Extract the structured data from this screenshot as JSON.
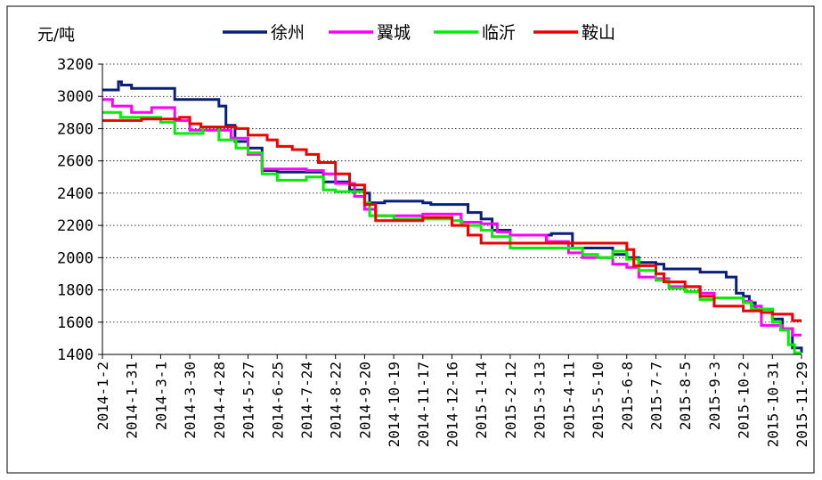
{
  "chart_data": {
    "type": "line",
    "ylabel": "元/吨",
    "ylim": [
      1400,
      3200
    ],
    "yticks": [
      "1400",
      "1600",
      "1800",
      "2000",
      "2200",
      "2400",
      "2600",
      "2800",
      "3000",
      "3200"
    ],
    "ytick_values": [
      1400,
      1600,
      1800,
      2000,
      2200,
      2400,
      2600,
      2800,
      3000,
      3200
    ],
    "grid": "horizontal dotted",
    "legend_position": "top",
    "x_tick_labels": [
      "2014-1-2",
      "2014-1-31",
      "2014-3-1",
      "2014-3-30",
      "2014-4-28",
      "2014-5-27",
      "2014-6-25",
      "2014-7-24",
      "2014-8-22",
      "2014-9-20",
      "2014-10-19",
      "2014-11-17",
      "2014-12-16",
      "2015-1-14",
      "2015-2-12",
      "2015-3-13",
      "2015-4-11",
      "2015-5-10",
      "2015-6-8",
      "2015-7-7",
      "2015-8-5",
      "2015-9-3",
      "2015-10-2",
      "2015-10-31",
      "2015-11-29"
    ],
    "x_domain": [
      "2014-1-2",
      "2015-11-29"
    ],
    "series": [
      {
        "name": "徐州",
        "color": "#0a1f7a",
        "points": [
          [
            "2014-1-2",
            3040
          ],
          [
            "2014-1-16",
            3040
          ],
          [
            "2014-1-18",
            3090
          ],
          [
            "2014-1-21",
            3070
          ],
          [
            "2014-1-31",
            3050
          ],
          [
            "2014-3-1",
            3050
          ],
          [
            "2014-3-15",
            2980
          ],
          [
            "2014-4-28",
            2940
          ],
          [
            "2014-5-5",
            2820
          ],
          [
            "2014-5-14",
            2720
          ],
          [
            "2014-5-27",
            2680
          ],
          [
            "2014-6-10",
            2540
          ],
          [
            "2014-6-25",
            2530
          ],
          [
            "2014-7-24",
            2530
          ],
          [
            "2014-8-10",
            2470
          ],
          [
            "2014-9-5",
            2420
          ],
          [
            "2014-9-20",
            2400
          ],
          [
            "2014-9-25",
            2340
          ],
          [
            "2014-10-10",
            2350
          ],
          [
            "2014-11-17",
            2340
          ],
          [
            "2014-11-25",
            2330
          ],
          [
            "2014-12-16",
            2330
          ],
          [
            "2015-1-1",
            2280
          ],
          [
            "2015-1-14",
            2240
          ],
          [
            "2015-1-25",
            2170
          ],
          [
            "2015-2-12",
            2140
          ],
          [
            "2015-3-13",
            2140
          ],
          [
            "2015-3-25",
            2150
          ],
          [
            "2015-4-11",
            2150
          ],
          [
            "2015-4-15",
            2060
          ],
          [
            "2015-5-10",
            2060
          ],
          [
            "2015-5-25",
            2020
          ],
          [
            "2015-6-8",
            2000
          ],
          [
            "2015-6-20",
            1970
          ],
          [
            "2015-7-7",
            1960
          ],
          [
            "2015-7-15",
            1930
          ],
          [
            "2015-8-5",
            1930
          ],
          [
            "2015-8-20",
            1910
          ],
          [
            "2015-9-3",
            1910
          ],
          [
            "2015-9-15",
            1880
          ],
          [
            "2015-9-25",
            1780
          ],
          [
            "2015-10-2",
            1760
          ],
          [
            "2015-10-8",
            1720
          ],
          [
            "2015-10-14",
            1680
          ],
          [
            "2015-10-31",
            1620
          ],
          [
            "2015-11-10",
            1560
          ],
          [
            "2015-11-20",
            1440
          ],
          [
            "2015-11-29",
            1410
          ]
        ]
      },
      {
        "name": "翼城",
        "color": "#ff00ff",
        "points": [
          [
            "2014-1-2",
            2980
          ],
          [
            "2014-1-12",
            2940
          ],
          [
            "2014-1-31",
            2900
          ],
          [
            "2014-2-20",
            2930
          ],
          [
            "2014-3-1",
            2930
          ],
          [
            "2014-3-15",
            2850
          ],
          [
            "2014-3-30",
            2790
          ],
          [
            "2014-4-28",
            2790
          ],
          [
            "2014-5-10",
            2740
          ],
          [
            "2014-5-27",
            2640
          ],
          [
            "2014-6-10",
            2550
          ],
          [
            "2014-6-25",
            2550
          ],
          [
            "2014-7-24",
            2540
          ],
          [
            "2014-8-10",
            2520
          ],
          [
            "2014-8-22",
            2460
          ],
          [
            "2014-9-10",
            2380
          ],
          [
            "2014-9-20",
            2300
          ],
          [
            "2014-10-1",
            2260
          ],
          [
            "2014-11-17",
            2270
          ],
          [
            "2014-12-16",
            2270
          ],
          [
            "2014-12-25",
            2220
          ],
          [
            "2015-1-14",
            2210
          ],
          [
            "2015-1-30",
            2160
          ],
          [
            "2015-2-12",
            2140
          ],
          [
            "2015-3-13",
            2140
          ],
          [
            "2015-3-20",
            2100
          ],
          [
            "2015-4-11",
            2030
          ],
          [
            "2015-4-25",
            2000
          ],
          [
            "2015-5-10",
            2000
          ],
          [
            "2015-5-25",
            1960
          ],
          [
            "2015-6-8",
            1940
          ],
          [
            "2015-6-20",
            1880
          ],
          [
            "2015-7-7",
            1870
          ],
          [
            "2015-7-20",
            1820
          ],
          [
            "2015-8-5",
            1820
          ],
          [
            "2015-8-20",
            1780
          ],
          [
            "2015-9-3",
            1750
          ],
          [
            "2015-10-2",
            1730
          ],
          [
            "2015-10-10",
            1700
          ],
          [
            "2015-10-20",
            1580
          ],
          [
            "2015-10-31",
            1580
          ],
          [
            "2015-11-10",
            1560
          ],
          [
            "2015-11-20",
            1520
          ],
          [
            "2015-11-29",
            1520
          ]
        ]
      },
      {
        "name": "临沂",
        "color": "#00ee00",
        "points": [
          [
            "2014-1-2",
            2900
          ],
          [
            "2014-1-20",
            2870
          ],
          [
            "2014-1-31",
            2870
          ],
          [
            "2014-3-1",
            2840
          ],
          [
            "2014-3-15",
            2770
          ],
          [
            "2014-3-30",
            2770
          ],
          [
            "2014-4-12",
            2810
          ],
          [
            "2014-4-28",
            2730
          ],
          [
            "2014-5-15",
            2680
          ],
          [
            "2014-5-27",
            2650
          ],
          [
            "2014-6-10",
            2520
          ],
          [
            "2014-6-25",
            2480
          ],
          [
            "2014-7-24",
            2500
          ],
          [
            "2014-8-10",
            2420
          ],
          [
            "2014-8-22",
            2410
          ],
          [
            "2014-9-20",
            2340
          ],
          [
            "2014-9-25",
            2260
          ],
          [
            "2014-10-19",
            2240
          ],
          [
            "2014-11-17",
            2240
          ],
          [
            "2014-12-16",
            2230
          ],
          [
            "2014-12-26",
            2200
          ],
          [
            "2015-1-14",
            2170
          ],
          [
            "2015-1-25",
            2130
          ],
          [
            "2015-2-12",
            2060
          ],
          [
            "2015-3-13",
            2060
          ],
          [
            "2015-4-11",
            2060
          ],
          [
            "2015-4-25",
            2020
          ],
          [
            "2015-5-10",
            2000
          ],
          [
            "2015-5-25",
            2040
          ],
          [
            "2015-6-8",
            1990
          ],
          [
            "2015-6-20",
            1920
          ],
          [
            "2015-7-7",
            1860
          ],
          [
            "2015-7-20",
            1810
          ],
          [
            "2015-8-5",
            1790
          ],
          [
            "2015-8-20",
            1740
          ],
          [
            "2015-9-3",
            1750
          ],
          [
            "2015-10-2",
            1720
          ],
          [
            "2015-10-10",
            1680
          ],
          [
            "2015-10-31",
            1600
          ],
          [
            "2015-11-8",
            1550
          ],
          [
            "2015-11-16",
            1460
          ],
          [
            "2015-11-22",
            1410
          ],
          [
            "2015-11-29",
            1410
          ]
        ]
      },
      {
        "name": "鞍山",
        "color": "#ee0000",
        "points": [
          [
            "2014-1-2",
            2850
          ],
          [
            "2014-1-31",
            2850
          ],
          [
            "2014-2-10",
            2860
          ],
          [
            "2014-3-1",
            2860
          ],
          [
            "2014-3-20",
            2870
          ],
          [
            "2014-3-30",
            2830
          ],
          [
            "2014-4-10",
            2810
          ],
          [
            "2014-5-15",
            2800
          ],
          [
            "2014-5-27",
            2760
          ],
          [
            "2014-6-15",
            2730
          ],
          [
            "2014-6-25",
            2690
          ],
          [
            "2014-7-10",
            2670
          ],
          [
            "2014-7-24",
            2640
          ],
          [
            "2014-8-5",
            2590
          ],
          [
            "2014-8-22",
            2520
          ],
          [
            "2014-9-5",
            2450
          ],
          [
            "2014-9-20",
            2330
          ],
          [
            "2014-10-1",
            2230
          ],
          [
            "2014-10-19",
            2230
          ],
          [
            "2014-11-17",
            2250
          ],
          [
            "2014-12-16",
            2200
          ],
          [
            "2015-1-1",
            2140
          ],
          [
            "2015-1-14",
            2090
          ],
          [
            "2015-2-12",
            2090
          ],
          [
            "2015-3-13",
            2090
          ],
          [
            "2015-4-11",
            2090
          ],
          [
            "2015-5-10",
            2090
          ],
          [
            "2015-6-8",
            2050
          ],
          [
            "2015-6-15",
            1950
          ],
          [
            "2015-7-7",
            1900
          ],
          [
            "2015-7-15",
            1850
          ],
          [
            "2015-8-5",
            1820
          ],
          [
            "2015-8-20",
            1760
          ],
          [
            "2015-9-3",
            1700
          ],
          [
            "2015-10-2",
            1670
          ],
          [
            "2015-10-20",
            1660
          ],
          [
            "2015-10-31",
            1650
          ],
          [
            "2015-11-20",
            1610
          ],
          [
            "2015-11-29",
            1610
          ]
        ]
      }
    ]
  }
}
